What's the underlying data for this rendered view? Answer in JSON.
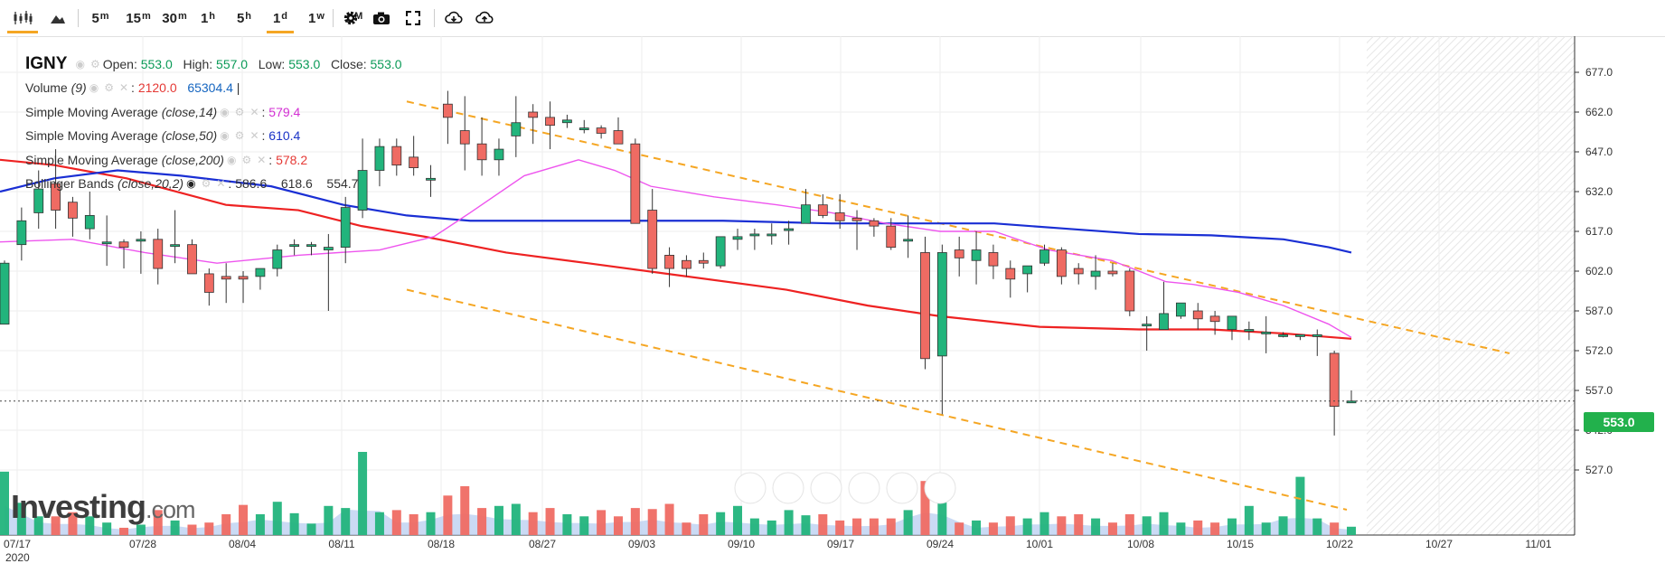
{
  "toolbar": {
    "chart_type_icons": [
      "candlestick-icon",
      "mountain-icon"
    ],
    "intervals": [
      {
        "label": "5",
        "sup": "m"
      },
      {
        "label": "15",
        "sup": "m"
      },
      {
        "label": "30",
        "sup": "m"
      },
      {
        "label": "1",
        "sup": "h"
      },
      {
        "label": "5",
        "sup": "h"
      },
      {
        "label": "1",
        "sup": "d"
      },
      {
        "label": "1",
        "sup": "w"
      },
      {
        "label": "1",
        "sup": "M"
      }
    ],
    "active_interval": "1d",
    "tools": [
      "settings-gear-icon",
      "camera-icon",
      "fullscreen-icon",
      "download-icon",
      "upload-icon"
    ]
  },
  "legend": {
    "symbol": "IGNY",
    "open_label": "Open:",
    "open": "553.0",
    "high_label": "High:",
    "high": "557.0",
    "low_label": "Low:",
    "low": "553.0",
    "close_label": "Close:",
    "close": "553.0",
    "volume_label": "Volume",
    "volume_param": "(9)",
    "volume_value": "2120.0",
    "volume_ma": "65304.4",
    "sma14_label": "Simple Moving Average",
    "sma14_param": "(close,14)",
    "sma14_value": "579.4",
    "sma50_label": "Simple Moving Average",
    "sma50_param": "(close,50)",
    "sma50_value": "610.4",
    "sma200_label": "Simple Moving Average",
    "sma200_param": "(close,200)",
    "sma200_value": "578.2",
    "bb_label": "Bollinger Bands",
    "bb_param": "(close,20,2)",
    "bb_mid": "586.6",
    "bb_up": "618.6",
    "bb_low": "554.7"
  },
  "price_badge": "553.0",
  "watermark": {
    "brand": "Investing",
    "suffix": ".com"
  },
  "colors": {
    "up": "#22b47c",
    "down": "#ef6b63",
    "sma14": "#ee55ee",
    "sma50": "#1a2fd4",
    "sma200": "#ee2222",
    "channel": "#f5a623",
    "volume_area": "#b8cdf0"
  },
  "chart_data": {
    "type": "candlestick",
    "title": "",
    "yaxis": {
      "ticks": [
        677.0,
        662.0,
        647.0,
        632.0,
        617.0,
        602.0,
        587.0,
        572.0,
        557.0,
        542.0,
        527.0
      ],
      "range": [
        513,
        691
      ]
    },
    "xaxis": {
      "ticks": [
        "07/17",
        "07/28",
        "08/04",
        "08/11",
        "08/18",
        "08/27",
        "09/03",
        "09/10",
        "09/17",
        "09/24",
        "10/01",
        "10/08",
        "10/15",
        "10/22",
        "10/27",
        "11/01"
      ],
      "year_label": "2020"
    },
    "ohlc": [
      [
        582,
        606,
        582,
        605
      ],
      [
        612,
        626,
        606,
        621
      ],
      [
        624,
        640,
        618,
        633
      ],
      [
        635,
        648,
        618,
        625
      ],
      [
        628,
        630,
        615,
        622
      ],
      [
        618,
        632,
        614,
        623
      ],
      [
        613,
        623,
        604,
        613
      ],
      [
        613,
        614,
        603,
        611
      ],
      [
        614,
        617,
        601,
        614
      ],
      [
        614,
        618,
        597,
        603
      ],
      [
        612,
        625,
        605,
        612
      ],
      [
        612,
        614,
        602,
        601
      ],
      [
        601,
        603,
        589,
        594
      ],
      [
        600,
        605,
        590,
        599
      ],
      [
        600,
        602,
        590,
        599
      ],
      [
        600,
        603,
        595,
        603
      ],
      [
        603,
        612,
        600,
        610
      ],
      [
        612,
        614,
        608,
        612
      ],
      [
        612,
        613,
        608,
        612
      ],
      [
        610,
        616,
        587,
        611
      ],
      [
        611,
        630,
        605,
        626
      ],
      [
        625,
        652,
        622,
        640
      ],
      [
        640,
        652,
        634,
        649
      ],
      [
        649,
        652,
        638,
        642
      ],
      [
        645,
        653,
        638,
        641
      ],
      [
        637,
        642,
        630,
        637
      ],
      [
        665,
        670,
        650,
        660
      ],
      [
        655,
        668,
        640,
        650
      ],
      [
        650,
        660,
        638,
        644
      ],
      [
        644,
        652,
        638,
        648
      ],
      [
        653,
        668,
        645,
        658
      ],
      [
        662,
        665,
        650,
        660
      ],
      [
        660,
        666,
        648,
        657
      ],
      [
        658,
        661,
        656,
        659
      ],
      [
        656,
        659,
        654,
        656
      ],
      [
        656,
        657,
        652,
        654
      ],
      [
        655,
        660,
        650,
        650
      ],
      [
        650,
        652,
        620,
        620
      ],
      [
        625,
        633,
        601,
        603
      ],
      [
        608,
        611,
        596,
        603
      ],
      [
        606,
        608,
        600,
        603
      ],
      [
        606,
        609,
        603,
        605
      ],
      [
        604,
        615,
        603,
        615
      ],
      [
        614,
        618,
        610,
        615
      ],
      [
        616,
        618,
        610,
        616
      ],
      [
        616,
        620,
        612,
        616
      ],
      [
        618,
        621,
        612,
        618
      ],
      [
        620,
        633,
        620,
        627
      ],
      [
        627,
        631,
        622,
        623
      ],
      [
        624,
        631,
        618,
        621
      ],
      [
        622,
        625,
        610,
        621
      ],
      [
        621,
        622,
        615,
        619
      ],
      [
        619,
        622,
        610,
        611
      ],
      [
        614,
        623,
        607,
        614
      ],
      [
        609,
        615,
        565,
        569
      ],
      [
        570,
        612,
        548,
        609
      ],
      [
        610,
        615,
        600,
        607
      ],
      [
        606,
        617,
        597,
        610
      ],
      [
        609,
        612,
        599,
        604
      ],
      [
        603,
        606,
        592,
        599
      ],
      [
        601,
        604,
        594,
        604
      ],
      [
        605,
        612,
        604,
        610
      ],
      [
        610,
        611,
        597,
        600
      ],
      [
        603,
        605,
        597,
        601
      ],
      [
        600,
        608,
        595,
        602
      ],
      [
        602,
        605,
        600,
        601
      ],
      [
        602,
        603,
        585,
        587
      ],
      [
        582,
        585,
        572,
        582
      ],
      [
        580,
        598,
        580,
        586
      ],
      [
        585,
        590,
        584,
        590
      ],
      [
        587,
        590,
        580,
        584
      ],
      [
        585,
        587,
        578,
        583
      ],
      [
        580,
        585,
        576,
        585
      ],
      [
        580,
        583,
        576,
        580
      ],
      [
        579,
        585,
        571,
        579
      ],
      [
        578,
        579,
        577,
        578
      ],
      [
        578,
        578,
        576,
        578
      ],
      [
        578,
        580,
        570,
        578
      ],
      [
        571,
        572,
        540,
        551
      ],
      [
        553,
        557,
        553,
        553
      ]
    ],
    "volume": [
      0.61,
      0.31,
      0.18,
      0.18,
      0.22,
      0.18,
      0.12,
      0.07,
      0.1,
      0.24,
      0.14,
      0.1,
      0.12,
      0.2,
      0.29,
      0.2,
      0.32,
      0.21,
      0.11,
      0.28,
      0.26,
      0.8,
      0.22,
      0.24,
      0.2,
      0.22,
      0.38,
      0.47,
      0.26,
      0.28,
      0.3,
      0.22,
      0.26,
      0.2,
      0.18,
      0.24,
      0.18,
      0.26,
      0.25,
      0.3,
      0.12,
      0.2,
      0.22,
      0.28,
      0.16,
      0.14,
      0.24,
      0.19,
      0.2,
      0.14,
      0.16,
      0.16,
      0.16,
      0.24,
      0.52,
      0.42,
      0.12,
      0.14,
      0.12,
      0.18,
      0.16,
      0.22,
      0.18,
      0.2,
      0.16,
      0.12,
      0.2,
      0.18,
      0.22,
      0.12,
      0.14,
      0.12,
      0.16,
      0.28,
      0.12,
      0.18,
      0.56,
      0.16,
      0.12,
      0.08
    ]
  }
}
